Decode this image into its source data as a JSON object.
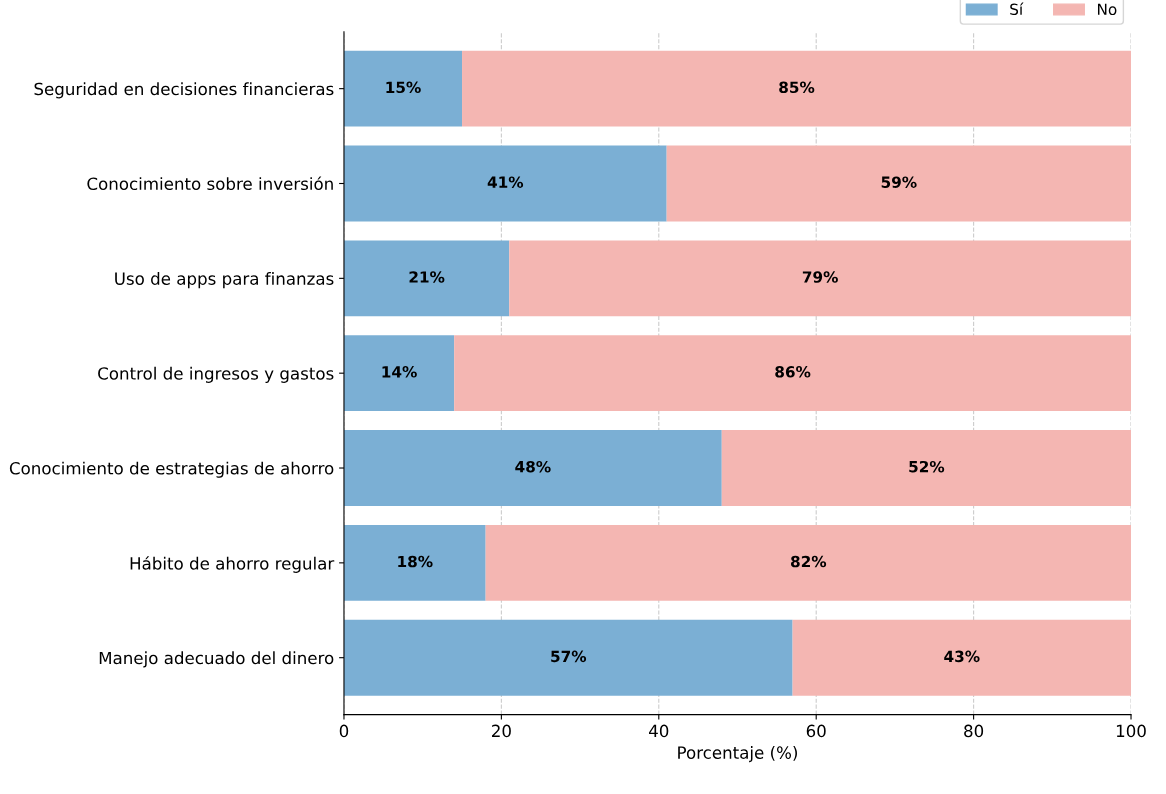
{
  "chart_data": {
    "type": "bar",
    "orientation": "horizontal",
    "stacked": true,
    "xlabel": "Porcentaje (%)",
    "categories": [
      "Seguridad en decisiones financieras",
      "Conocimiento sobre inversión",
      "Uso de apps para finanzas",
      "Control de ingresos y gastos",
      "Conocimiento de estrategias de ahorro",
      "Hábito de ahorro regular",
      "Manejo adecuado del dinero"
    ],
    "series": [
      {
        "name": "Sí",
        "color": "#7bafd4",
        "values": [
          15,
          41,
          21,
          14,
          48,
          18,
          57
        ],
        "value_labels": [
          "15%",
          "41%",
          "21%",
          "14%",
          "48%",
          "18%",
          "57%"
        ]
      },
      {
        "name": "No",
        "color": "#f4b6b2",
        "values": [
          85,
          59,
          79,
          86,
          52,
          82,
          43
        ],
        "value_labels": [
          "85%",
          "59%",
          "79%",
          "86%",
          "52%",
          "82%",
          "43%"
        ]
      }
    ],
    "xlim": [
      0,
      100
    ],
    "xticks": [
      0,
      20,
      40,
      60,
      80,
      100
    ],
    "grid": "x",
    "legend": "top right"
  }
}
